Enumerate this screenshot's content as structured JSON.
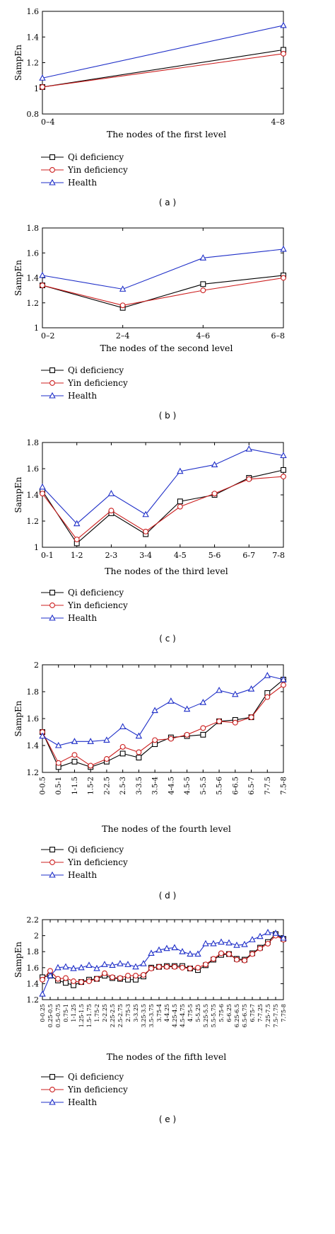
{
  "legend": {
    "items": [
      {
        "label": "Qi deficiency",
        "color": "#000000",
        "marker": "square"
      },
      {
        "label": "Yin deficiency",
        "color": "#cc1f1f",
        "marker": "circle"
      },
      {
        "label": "Health",
        "color": "#1f2fc8",
        "marker": "triangle"
      }
    ]
  },
  "chart_data": [
    {
      "type": "line",
      "caption": "( a )",
      "title": "",
      "xlabel": "The nodes of the first level",
      "ylabel": "SampEn",
      "categories": [
        "0–4",
        "4–8"
      ],
      "ylim": [
        0.8,
        1.6
      ],
      "yticks": [
        "0.8",
        "1",
        "1.2",
        "1.4",
        "1.6"
      ],
      "series": [
        {
          "name": "Qi deficiency",
          "values": [
            1.01,
            1.3
          ]
        },
        {
          "name": "Yin deficiency",
          "values": [
            1.01,
            1.27
          ]
        },
        {
          "name": "Health",
          "values": [
            1.08,
            1.49
          ]
        }
      ]
    },
    {
      "type": "line",
      "caption": "( b )",
      "title": "",
      "xlabel": "The nodes of the second level",
      "ylabel": "SampEn",
      "categories": [
        "0–2",
        "2–4",
        "4–6",
        "6–8"
      ],
      "ylim": [
        1.0,
        1.8
      ],
      "yticks": [
        "1",
        "1.2",
        "1.4",
        "1.6",
        "1.8"
      ],
      "series": [
        {
          "name": "Qi deficiency",
          "values": [
            1.34,
            1.16,
            1.35,
            1.42
          ]
        },
        {
          "name": "Yin deficiency",
          "values": [
            1.34,
            1.18,
            1.3,
            1.4
          ]
        },
        {
          "name": "Health",
          "values": [
            1.42,
            1.31,
            1.56,
            1.63
          ]
        }
      ]
    },
    {
      "type": "line",
      "caption": "( c )",
      "title": "",
      "xlabel": "The nodes of the third level",
      "ylabel": "SampEn",
      "categories": [
        "0-1",
        "1-2",
        "2-3",
        "3-4",
        "4-5",
        "5-6",
        "6-7",
        "7-8"
      ],
      "ylim": [
        1.0,
        1.8
      ],
      "yticks": [
        "1",
        "1.2",
        "1.4",
        "1.6",
        "1.8"
      ],
      "series": [
        {
          "name": "Qi deficiency",
          "values": [
            1.43,
            1.03,
            1.26,
            1.1,
            1.35,
            1.4,
            1.53,
            1.59
          ]
        },
        {
          "name": "Yin deficiency",
          "values": [
            1.41,
            1.06,
            1.28,
            1.12,
            1.31,
            1.41,
            1.52,
            1.54
          ]
        },
        {
          "name": "Health",
          "values": [
            1.46,
            1.18,
            1.41,
            1.25,
            1.58,
            1.63,
            1.75,
            1.7
          ]
        }
      ]
    },
    {
      "type": "line",
      "caption": "( d )",
      "title": "",
      "xlabel": "The nodes of the fourth level",
      "ylabel": "SampEn",
      "categories": [
        "0-0.5",
        "0.5-1",
        "1-1.5",
        "1.5-2",
        "2-2.5",
        "2.5-3",
        "3-3.5",
        "3.5-4",
        "4-4.5",
        "4.5-5",
        "5-5.5",
        "5.5-6",
        "6-6.5",
        "6.5-7",
        "7-7.5",
        "7.5-8"
      ],
      "ylim": [
        1.2,
        2.0
      ],
      "yticks": [
        "1.2",
        "1.4",
        "1.6",
        "1.8",
        "2"
      ],
      "series": [
        {
          "name": "Qi deficiency",
          "values": [
            1.5,
            1.24,
            1.28,
            1.24,
            1.28,
            1.34,
            1.31,
            1.41,
            1.46,
            1.47,
            1.48,
            1.58,
            1.59,
            1.61,
            1.79,
            1.89
          ]
        },
        {
          "name": "Yin deficiency",
          "values": [
            1.5,
            1.27,
            1.33,
            1.25,
            1.3,
            1.39,
            1.35,
            1.44,
            1.45,
            1.48,
            1.53,
            1.58,
            1.57,
            1.61,
            1.76,
            1.85
          ]
        },
        {
          "name": "Health",
          "values": [
            1.47,
            1.4,
            1.43,
            1.43,
            1.44,
            1.54,
            1.47,
            1.66,
            1.73,
            1.67,
            1.72,
            1.81,
            1.78,
            1.82,
            1.92,
            1.89
          ]
        }
      ]
    },
    {
      "type": "line",
      "caption": "( e )",
      "title": "",
      "xlabel": "The nodes of the fifth level",
      "ylabel": "SampEn",
      "categories": [
        "0-0.25",
        "0.25-0.5",
        "0.5-0.75",
        "0.75-1",
        "1-1.25",
        "1.25-1.5",
        "1.5-1.75",
        "1.75-2",
        "2-2.25",
        "2.25-2.5",
        "2.5-2.75",
        "2.75-3",
        "3-3.25",
        "3.25-3.5",
        "3.5-3.75",
        "3.75-4",
        "4-4.25",
        "4.25-4.5",
        "4.5-4.75",
        "4.75-5",
        "5-5.25",
        "5.25-5.5",
        "5.5-5.75",
        "5.75-6",
        "6-6.25",
        "6.25-6.5",
        "6.5-6.75",
        "6.75-7",
        "7-7.25",
        "7.25-7.5",
        "7.5-7.75",
        "7.75-8"
      ],
      "ylim": [
        1.2,
        2.2
      ],
      "yticks": [
        "1.2",
        "1.4",
        "1.6",
        "1.8",
        "2",
        "2.2"
      ],
      "series": [
        {
          "name": "Qi deficiency",
          "values": [
            1.48,
            1.5,
            1.44,
            1.41,
            1.38,
            1.42,
            1.45,
            1.46,
            1.5,
            1.47,
            1.46,
            1.45,
            1.45,
            1.49,
            1.6,
            1.61,
            1.62,
            1.62,
            1.62,
            1.59,
            1.57,
            1.63,
            1.7,
            1.76,
            1.77,
            1.71,
            1.7,
            1.78,
            1.85,
            1.92,
            2.02,
            1.96
          ]
        },
        {
          "name": "Yin deficiency",
          "values": [
            1.45,
            1.56,
            1.46,
            1.47,
            1.43,
            1.42,
            1.43,
            1.46,
            1.53,
            1.48,
            1.47,
            1.5,
            1.5,
            1.51,
            1.59,
            1.61,
            1.61,
            1.61,
            1.6,
            1.59,
            1.6,
            1.64,
            1.71,
            1.78,
            1.77,
            1.7,
            1.69,
            1.77,
            1.84,
            1.9,
            2.0,
            1.95
          ]
        },
        {
          "name": "Health",
          "values": [
            1.27,
            1.5,
            1.6,
            1.61,
            1.59,
            1.6,
            1.63,
            1.59,
            1.64,
            1.63,
            1.65,
            1.64,
            1.61,
            1.65,
            1.78,
            1.82,
            1.84,
            1.85,
            1.8,
            1.77,
            1.77,
            1.9,
            1.9,
            1.92,
            1.91,
            1.88,
            1.89,
            1.95,
            1.99,
            2.04,
            2.03,
            1.97
          ]
        }
      ]
    }
  ]
}
